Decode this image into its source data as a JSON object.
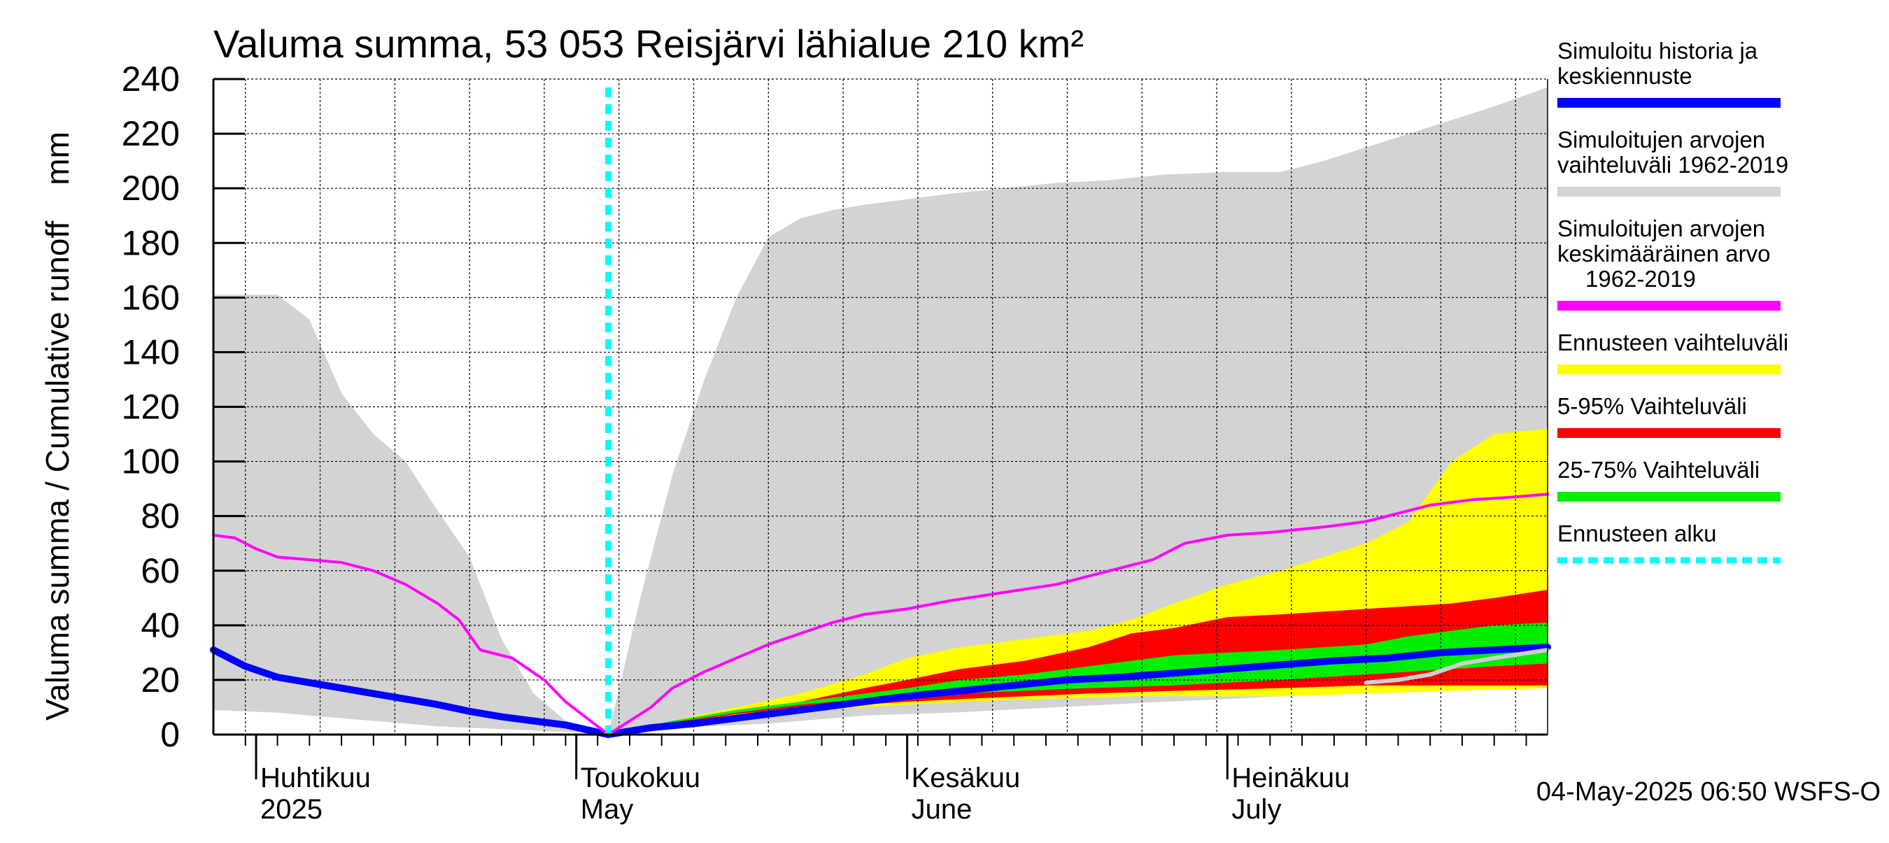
{
  "chart_data": {
    "type": "area",
    "title": "Valuma summa, 53 053 Reisjärvi lähialue 210 km²",
    "ylabel": "Valuma summa / Cumulative runoff    mm",
    "ylim": [
      0,
      240
    ],
    "yticks": [
      0,
      20,
      40,
      60,
      80,
      100,
      120,
      140,
      160,
      180,
      200,
      220,
      240
    ],
    "grid": true,
    "legend_position": "right",
    "x_start": "2025-03-28",
    "x_end": "2025-07-31",
    "forecast_start": "2025-05-04",
    "month_labels": [
      {
        "date": "2025-04-01",
        "line1": "Huhtikuu",
        "line2": "2025"
      },
      {
        "date": "2025-05-01",
        "line1": "Toukokuu",
        "line2": "May"
      },
      {
        "date": "2025-06-01",
        "line1": "Kesäkuu",
        "line2": "June"
      },
      {
        "date": "2025-07-01",
        "line1": "Heinäkuu",
        "line2": "July"
      }
    ],
    "footer": "04-May-2025 06:50 WSFS-O",
    "legend": [
      {
        "label": "Simuloitu historia ja keskiennuste",
        "lines": [
          "Simuloitu historia ja",
          "keskiennuste"
        ],
        "color": "#0000ff"
      },
      {
        "label": "Simuloitujen arvojen vaihteluväli 1962-2019",
        "lines": [
          "Simuloitujen arvojen",
          "vaihteluväli 1962-2019"
        ],
        "color": "#d3d3d3"
      },
      {
        "label": "Simuloitujen arvojen keskimääräinen arvo 1962-2019",
        "lines": [
          "Simuloitujen arvojen",
          "keskimääräinen arvo",
          "1962-2019"
        ],
        "color": "#ff00ff"
      },
      {
        "label": "Ennusteen vaihteluväli",
        "lines": [
          "Ennusteen vaihteluväli"
        ],
        "color": "#ffff00"
      },
      {
        "label": "5-95% Vaihteluväli",
        "lines": [
          "5-95% Vaihteluväli"
        ],
        "color": "#ff0000"
      },
      {
        "label": "25-75% Vaihteluväli",
        "lines": [
          "25-75% Vaihteluväli"
        ],
        "color": "#00ee00"
      },
      {
        "label": "Ennusteen alku",
        "lines": [
          "Ennusteen alku"
        ],
        "color": "#00ffff"
      }
    ],
    "series": [
      {
        "name": "Simuloitujen arvojen vaihteluväli 1962-2019",
        "kind": "band",
        "color": "#d3d3d3",
        "x": [
          "2025-03-28",
          "2025-04-03",
          "2025-04-06",
          "2025-04-09",
          "2025-04-12",
          "2025-04-15",
          "2025-04-18",
          "2025-04-21",
          "2025-04-24",
          "2025-04-27",
          "2025-04-30",
          "2025-05-04",
          "2025-05-07",
          "2025-05-10",
          "2025-05-13",
          "2025-05-16",
          "2025-05-19",
          "2025-05-22",
          "2025-05-25",
          "2025-05-28",
          "2025-06-01",
          "2025-06-05",
          "2025-06-10",
          "2025-06-15",
          "2025-06-20",
          "2025-06-25",
          "2025-07-01",
          "2025-07-06",
          "2025-07-10",
          "2025-07-14",
          "2025-07-18",
          "2025-07-22",
          "2025-07-26",
          "2025-07-31"
        ],
        "low": [
          9,
          8,
          7,
          6,
          5,
          4,
          3,
          2.5,
          2,
          1.5,
          1,
          0,
          1,
          2,
          3,
          3.5,
          4,
          5,
          6,
          7,
          7.5,
          8,
          9,
          10,
          11,
          12,
          13,
          14,
          15,
          15.5,
          16,
          16.5,
          17,
          17
        ],
        "high": [
          161,
          161,
          152,
          125,
          110,
          100,
          82,
          65,
          35,
          15,
          5,
          0,
          50,
          95,
          130,
          160,
          182,
          189,
          192,
          194,
          196,
          198,
          200,
          202,
          203,
          205,
          206,
          206,
          210,
          215,
          220,
          225,
          230,
          237
        ]
      },
      {
        "name": "Ennusteen vaihteluväli",
        "kind": "band",
        "color": "#ffff00",
        "x": [
          "2025-05-04",
          "2025-05-10",
          "2025-05-16",
          "2025-05-22",
          "2025-05-28",
          "2025-06-01",
          "2025-06-06",
          "2025-06-12",
          "2025-06-18",
          "2025-06-22",
          "2025-06-26",
          "2025-07-01",
          "2025-07-06",
          "2025-07-10",
          "2025-07-14",
          "2025-07-18",
          "2025-07-22",
          "2025-07-26",
          "2025-07-31"
        ],
        "low": [
          0,
          4,
          7,
          9,
          10,
          11,
          12,
          13,
          13.5,
          14,
          14,
          14,
          14,
          14.5,
          15,
          15.5,
          16,
          16.5,
          17
        ],
        "high": [
          0,
          5,
          10,
          15,
          22,
          28,
          32,
          35,
          38,
          42,
          48,
          55,
          60,
          65,
          70,
          78,
          100,
          110,
          112
        ]
      },
      {
        "name": "5-95% Vaihteluväli",
        "kind": "band",
        "color": "#ff0000",
        "x": [
          "2025-05-04",
          "2025-05-10",
          "2025-05-16",
          "2025-05-22",
          "2025-05-28",
          "2025-06-01",
          "2025-06-06",
          "2025-06-12",
          "2025-06-18",
          "2025-06-22",
          "2025-06-26",
          "2025-07-01",
          "2025-07-06",
          "2025-07-10",
          "2025-07-14",
          "2025-07-18",
          "2025-07-22",
          "2025-07-26",
          "2025-07-31"
        ],
        "low": [
          0,
          4,
          7.5,
          10,
          11,
          12,
          13,
          14,
          15,
          15.5,
          16,
          16.5,
          17,
          17.5,
          18,
          18,
          18,
          18,
          18
        ],
        "high": [
          0,
          5,
          9,
          12,
          17,
          20,
          24,
          27,
          32,
          37,
          39,
          43,
          44,
          45,
          46,
          47,
          48,
          50,
          53
        ]
      },
      {
        "name": "25-75% Vaihteluväli",
        "kind": "band",
        "color": "#00ee00",
        "x": [
          "2025-05-04",
          "2025-05-10",
          "2025-05-16",
          "2025-05-22",
          "2025-05-28",
          "2025-06-01",
          "2025-06-06",
          "2025-06-12",
          "2025-06-18",
          "2025-06-22",
          "2025-06-26",
          "2025-07-01",
          "2025-07-06",
          "2025-07-10",
          "2025-07-14",
          "2025-07-18",
          "2025-07-22",
          "2025-07-26",
          "2025-07-31"
        ],
        "low": [
          0,
          4.5,
          8,
          11,
          13,
          14,
          15,
          16,
          17,
          17.5,
          18,
          19,
          20,
          21,
          22,
          23,
          24,
          25,
          26
        ],
        "high": [
          0,
          5,
          9,
          12,
          15,
          17,
          20,
          22,
          25,
          27,
          29,
          30,
          31,
          32,
          33,
          36,
          38,
          40,
          41
        ]
      },
      {
        "name": "Simuloitu historia ja keskiennuste",
        "kind": "line",
        "color": "#0000ff",
        "x": [
          "2025-03-28",
          "2025-03-31",
          "2025-04-03",
          "2025-04-06",
          "2025-04-09",
          "2025-04-12",
          "2025-04-15",
          "2025-04-18",
          "2025-04-21",
          "2025-04-24",
          "2025-04-27",
          "2025-04-30",
          "2025-05-04",
          "2025-05-08",
          "2025-05-12",
          "2025-05-16",
          "2025-05-20",
          "2025-05-24",
          "2025-05-28",
          "2025-06-01",
          "2025-06-06",
          "2025-06-11",
          "2025-06-16",
          "2025-06-21",
          "2025-06-26",
          "2025-07-01",
          "2025-07-06",
          "2025-07-11",
          "2025-07-16",
          "2025-07-21",
          "2025-07-26",
          "2025-07-31"
        ],
        "values": [
          31,
          25,
          21,
          19,
          17,
          15,
          13,
          11,
          8.5,
          6.5,
          5,
          3.5,
          0,
          2.5,
          4,
          6,
          8,
          10,
          12,
          14,
          16,
          18,
          20,
          21,
          22.5,
          24,
          25.5,
          27,
          28,
          30,
          31,
          32
        ]
      },
      {
        "name": "Simuloitujen arvojen keskimääräinen arvo 1962-2019",
        "kind": "line",
        "color": "#ff00ff",
        "x": [
          "2025-03-28",
          "2025-03-30",
          "2025-04-01",
          "2025-04-03",
          "2025-04-06",
          "2025-04-09",
          "2025-04-12",
          "2025-04-15",
          "2025-04-18",
          "2025-04-20",
          "2025-04-22",
          "2025-04-25",
          "2025-04-28",
          "2025-04-30",
          "2025-05-02",
          "2025-05-04",
          "2025-05-06",
          "2025-05-08",
          "2025-05-10",
          "2025-05-13",
          "2025-05-16",
          "2025-05-19",
          "2025-05-22",
          "2025-05-25",
          "2025-05-28",
          "2025-06-01",
          "2025-06-05",
          "2025-06-10",
          "2025-06-15",
          "2025-06-18",
          "2025-06-21",
          "2025-06-24",
          "2025-06-27",
          "2025-07-01",
          "2025-07-05",
          "2025-07-10",
          "2025-07-14",
          "2025-07-17",
          "2025-07-20",
          "2025-07-24",
          "2025-07-28",
          "2025-07-31"
        ],
        "values": [
          73,
          72,
          68,
          65,
          64,
          63,
          60,
          55,
          48,
          42,
          31,
          28,
          20,
          12,
          6,
          0,
          5,
          10,
          17,
          23,
          28,
          33,
          37,
          41,
          44,
          46,
          49,
          52,
          55,
          58,
          61,
          64,
          70,
          73,
          74,
          76,
          78,
          81,
          84,
          86,
          87,
          88
        ]
      },
      {
        "name": "",
        "kind": "line",
        "color": "#cfcfcf",
        "x": [
          "2025-07-14",
          "2025-07-17",
          "2025-07-20",
          "2025-07-23",
          "2025-07-26",
          "2025-07-31"
        ],
        "values": [
          19,
          20,
          22,
          26,
          28,
          31
        ]
      }
    ]
  }
}
